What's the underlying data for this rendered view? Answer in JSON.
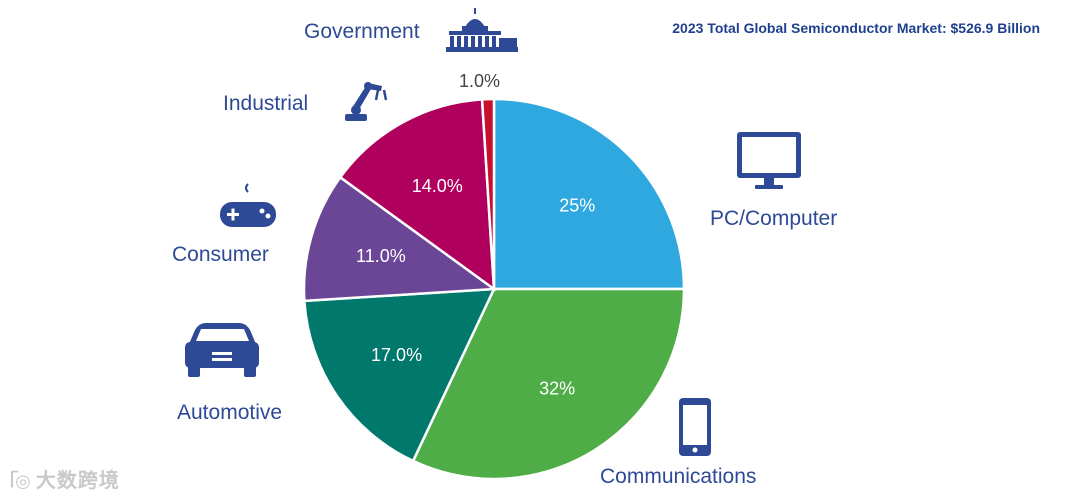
{
  "chart_data": {
    "type": "pie",
    "title": "2023 Total Global Semiconductor Market: $526.9 Billion",
    "slices": [
      {
        "label": "PC/Computer",
        "value": 25,
        "display": "25%",
        "color": "#2fa8e0",
        "icon": "monitor-icon"
      },
      {
        "label": "Communications",
        "value": 32,
        "display": "32%",
        "color": "#4fad48",
        "icon": "smartphone-icon"
      },
      {
        "label": "Automotive",
        "value": 17.0,
        "display": "17.0%",
        "color": "#00786c",
        "icon": "car-icon"
      },
      {
        "label": "Consumer",
        "value": 11.0,
        "display": "11.0%",
        "color": "#6b4596",
        "icon": "gamepad-icon"
      },
      {
        "label": "Industrial",
        "value": 14.0,
        "display": "14.0%",
        "color": "#b0005e",
        "icon": "robot-arm-icon"
      },
      {
        "label": "Government",
        "value": 1.0,
        "display": "1.0%",
        "color": "#c8102e",
        "icon": "capitol-building-icon"
      }
    ],
    "legend": "none"
  },
  "watermark": {
    "text": "大数跨境",
    "icon": "watermark-logo-icon"
  },
  "colors": {
    "label_text": "#2e4a96",
    "icon_fill": "#2e4a96",
    "title_text": "#1f3f8f"
  }
}
